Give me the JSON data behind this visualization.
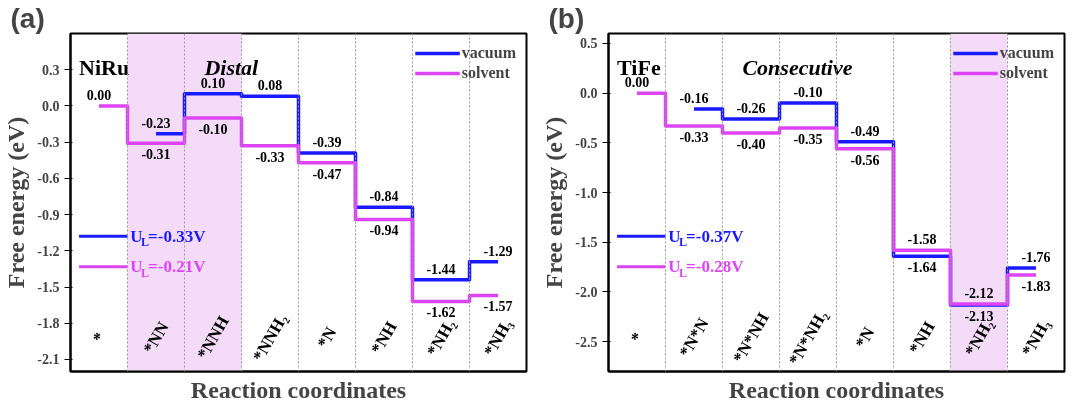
{
  "chart_data": [
    {
      "type": "step",
      "title": "(a)",
      "xlabel": "Reaction coordinates",
      "ylabel": "Free energy (eV)",
      "categories": [
        "*",
        "*NN",
        "*NNH",
        "*NNH₂",
        "*N",
        "*NH",
        "*NH₂",
        "*NH₃"
      ],
      "series": [
        {
          "name": "vacuum",
          "color": "#1a1aff",
          "values": [
            null,
            -0.23,
            0.1,
            0.08,
            -0.39,
            -0.84,
            -1.44,
            -1.29
          ],
          "value_labels": [
            null,
            "-0.23",
            "0.10",
            "0.08",
            "-0.39",
            "-0.84",
            "-1.44",
            "-1.29"
          ]
        },
        {
          "name": "solvent",
          "color": "#dd44f5",
          "values": [
            0.0,
            -0.31,
            -0.1,
            -0.33,
            -0.47,
            -0.94,
            -1.62,
            -1.57
          ],
          "value_labels": [
            "0.00",
            "-0.31",
            "-0.10",
            "-0.33",
            "-0.47",
            "-0.94",
            "-1.62",
            "-1.57"
          ]
        }
      ],
      "ylim": [
        -2.2,
        0.6
      ],
      "yticks": [
        {
          "value": -2.1,
          "label": "-2.1"
        },
        {
          "value": -1.8,
          "label": "-1.8"
        },
        {
          "value": -1.5,
          "label": "-1.5"
        },
        {
          "value": -1.2,
          "label": "-1.2"
        },
        {
          "value": -0.9,
          "label": "-0.9"
        },
        {
          "value": -0.6,
          "label": "-0.6"
        },
        {
          "value": -0.3,
          "label": "-0.3"
        },
        {
          "value": 0,
          "label": "0.0"
        },
        {
          "value": 0.3,
          "label": "0.3"
        }
      ],
      "bands": [
        {
          "axis": "x",
          "from": "*NN",
          "to": "*NNH",
          "color": "#f4dcf9"
        }
      ],
      "annotations": [
        "NiRu",
        "Distal",
        "U$_{L}$=-0.33V",
        "U$_{L}$=-0.21V"
      ],
      "grid": "x",
      "legend": "top right",
      "line_style": "solid"
    },
    {
      "type": "step",
      "title": "(b)",
      "xlabel": "Reaction coordinates",
      "ylabel": "Free energy (eV)",
      "categories": [
        "*",
        "*N*N",
        "*N*NH",
        "*N*NH₂",
        "*N",
        "*NH",
        "*NH₂",
        "*NH₃"
      ],
      "series": [
        {
          "name": "vacuum",
          "color": "#1a1aff",
          "values": [
            null,
            -0.16,
            -0.26,
            -0.1,
            -0.49,
            -1.64,
            -2.13,
            -1.76
          ],
          "value_labels": [
            null,
            "-0.16",
            "-0.26",
            "-0.10",
            "-0.49",
            "-1.64",
            "-2.13",
            "-1.76"
          ]
        },
        {
          "name": "solvent",
          "color": "#dd44f5",
          "values": [
            0.0,
            -0.33,
            -0.4,
            -0.35,
            -0.56,
            -1.58,
            -2.12,
            -1.83
          ],
          "value_labels": [
            "0.00",
            "-0.33",
            "-0.40",
            "-0.35",
            "-0.56",
            "-1.58",
            "-2.12",
            "-1.83"
          ]
        }
      ],
      "ylim": [
        -2.8,
        0.6
      ],
      "yticks": [
        {
          "value": -2.5,
          "label": "-2.5"
        },
        {
          "value": -2,
          "label": "-2.0"
        },
        {
          "value": -1.5,
          "label": "-1.5"
        },
        {
          "value": -1,
          "label": "-1.0"
        },
        {
          "value": -0.5,
          "label": "-0.5"
        },
        {
          "value": 0,
          "label": "0.0"
        },
        {
          "value": 0.5,
          "label": "0.5"
        }
      ],
      "bands": [
        {
          "axis": "x",
          "from": "*NH₂",
          "to": "*NH₂",
          "color": "#f4dcf9"
        }
      ],
      "annotations": [
        "TiFe",
        "Consecutive",
        "U$_{L}$=-0.37V",
        "U$_{L}$=-0.28V"
      ],
      "grid": "x",
      "legend": "top right",
      "line_style": "solid"
    }
  ]
}
